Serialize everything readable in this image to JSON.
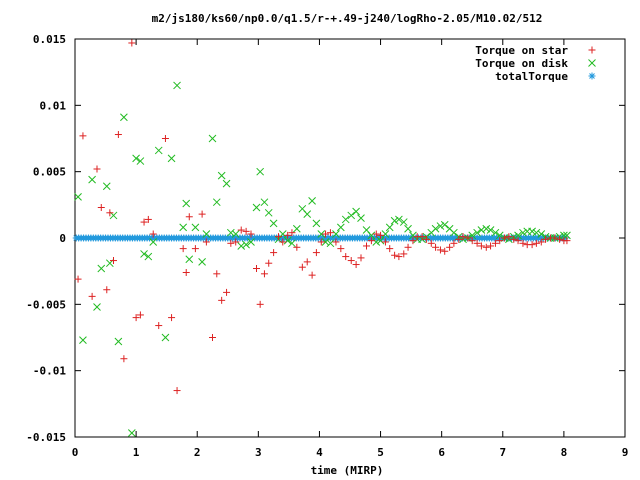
{
  "chart_data": {
    "type": "scatter",
    "title": "m2/js180/ks60/np0.0/q1.5/r-+.49-j240/logRho-2.05/M10.02/512",
    "xlabel": "time (MIRP)",
    "ylabel": "",
    "xlim": [
      0,
      9
    ],
    "ylim": [
      -0.015,
      0.015
    ],
    "x_ticks": [
      "0",
      "1",
      "2",
      "3",
      "4",
      "5",
      "6",
      "7",
      "8",
      "9"
    ],
    "y_ticks": [
      "0.015",
      "0.01",
      "0.005",
      "0",
      "-0.005",
      "-0.01",
      "-0.015"
    ],
    "grid": false,
    "legend_position": "top-right",
    "colors": {
      "star": "#dd2222",
      "disk": "#22bb22",
      "total": "#2299dd"
    },
    "series": [
      {
        "name": "Torque on star",
        "marker": "plus",
        "points": [
          [
            0.05,
            -0.0031
          ],
          [
            0.13,
            0.0077
          ],
          [
            0.28,
            -0.0044
          ],
          [
            0.36,
            0.0052
          ],
          [
            0.43,
            0.0023
          ],
          [
            0.52,
            -0.0039
          ],
          [
            0.57,
            0.0019
          ],
          [
            0.63,
            -0.0017
          ],
          [
            0.71,
            0.0078
          ],
          [
            0.8,
            -0.0091
          ],
          [
            0.93,
            0.0147
          ],
          [
            1.0,
            -0.006
          ],
          [
            1.07,
            -0.0058
          ],
          [
            1.13,
            0.0012
          ],
          [
            1.2,
            0.0014
          ],
          [
            1.28,
            0.0003
          ],
          [
            1.37,
            -0.0066
          ],
          [
            1.48,
            0.0075
          ],
          [
            1.58,
            -0.006
          ],
          [
            1.67,
            -0.0115
          ],
          [
            1.77,
            -0.0008
          ],
          [
            1.82,
            -0.0026
          ],
          [
            1.87,
            0.0016
          ],
          [
            1.97,
            -0.0008
          ],
          [
            2.08,
            0.0018
          ],
          [
            2.15,
            -0.0003
          ],
          [
            2.25,
            -0.0075
          ],
          [
            2.32,
            -0.0027
          ],
          [
            2.4,
            -0.0047
          ],
          [
            2.48,
            -0.0041
          ],
          [
            2.55,
            -0.0004
          ],
          [
            2.63,
            -0.0003
          ],
          [
            2.72,
            0.0006
          ],
          [
            2.8,
            0.0005
          ],
          [
            2.88,
            0.0003
          ],
          [
            2.97,
            -0.0023
          ],
          [
            3.03,
            -0.005
          ],
          [
            3.1,
            -0.0027
          ],
          [
            3.17,
            -0.0019
          ],
          [
            3.25,
            -0.0011
          ],
          [
            3.33,
            0.0001
          ],
          [
            3.4,
            -0.0003
          ],
          [
            3.48,
            0.0002
          ],
          [
            3.55,
            0.0004
          ],
          [
            3.63,
            -0.0007
          ],
          [
            3.72,
            -0.0022
          ],
          [
            3.8,
            -0.0018
          ],
          [
            3.88,
            -0.0028
          ],
          [
            3.95,
            -0.0011
          ],
          [
            4.03,
            -0.0003
          ],
          [
            4.1,
            0.0003
          ],
          [
            4.18,
            0.0004
          ],
          [
            4.27,
            -0.0003
          ],
          [
            4.35,
            -0.0008
          ],
          [
            4.43,
            -0.0014
          ],
          [
            4.52,
            -0.0017
          ],
          [
            4.6,
            -0.002
          ],
          [
            4.68,
            -0.0015
          ],
          [
            4.77,
            -0.0006
          ],
          [
            4.85,
            -0.0002
          ],
          [
            4.93,
            0.0003
          ],
          [
            5.0,
            0.0002
          ],
          [
            5.08,
            -0.0003
          ],
          [
            5.15,
            -0.0008
          ],
          [
            5.23,
            -0.0013
          ],
          [
            5.3,
            -0.0014
          ],
          [
            5.38,
            -0.0012
          ],
          [
            5.45,
            -0.0007
          ],
          [
            5.53,
            -0.0002
          ],
          [
            5.6,
            0.0001
          ],
          [
            5.68,
            0.0001
          ],
          [
            5.75,
            -0.0001
          ],
          [
            5.83,
            -0.0004
          ],
          [
            5.9,
            -0.0007
          ],
          [
            5.98,
            -0.0009
          ],
          [
            6.05,
            -0.001
          ],
          [
            6.13,
            -0.0007
          ],
          [
            6.2,
            -0.0004
          ],
          [
            6.28,
            -0.0001
          ],
          [
            6.35,
            0.0001
          ],
          [
            6.43,
            0.0
          ],
          [
            6.5,
            -0.0002
          ],
          [
            6.58,
            -0.0004
          ],
          [
            6.65,
            -0.0006
          ],
          [
            6.73,
            -0.0007
          ],
          [
            6.8,
            -0.0006
          ],
          [
            6.88,
            -0.0004
          ],
          [
            6.95,
            -0.0002
          ],
          [
            7.03,
            0.0
          ],
          [
            7.1,
            0.0001
          ],
          [
            7.18,
            -0.0001
          ],
          [
            7.25,
            -0.0002
          ],
          [
            7.33,
            -0.0004
          ],
          [
            7.4,
            -0.0005
          ],
          [
            7.48,
            -0.0005
          ],
          [
            7.55,
            -0.0004
          ],
          [
            7.63,
            -0.0003
          ],
          [
            7.7,
            -0.0001
          ],
          [
            7.78,
            0.0
          ],
          [
            7.85,
            0.0
          ],
          [
            7.93,
            -0.0001
          ],
          [
            8.0,
            -0.0002
          ],
          [
            8.05,
            -0.0002
          ]
        ]
      },
      {
        "name": "Torque on disk",
        "marker": "cross",
        "points": [
          [
            0.05,
            0.0031
          ],
          [
            0.13,
            -0.0077
          ],
          [
            0.28,
            0.0044
          ],
          [
            0.36,
            -0.0052
          ],
          [
            0.43,
            -0.0023
          ],
          [
            0.52,
            0.0039
          ],
          [
            0.57,
            -0.0019
          ],
          [
            0.63,
            0.0017
          ],
          [
            0.71,
            -0.0078
          ],
          [
            0.8,
            0.0091
          ],
          [
            0.93,
            -0.0147
          ],
          [
            1.0,
            0.006
          ],
          [
            1.07,
            0.0058
          ],
          [
            1.13,
            -0.0012
          ],
          [
            1.2,
            -0.0014
          ],
          [
            1.28,
            -0.0003
          ],
          [
            1.37,
            0.0066
          ],
          [
            1.48,
            -0.0075
          ],
          [
            1.58,
            0.006
          ],
          [
            1.67,
            0.0115
          ],
          [
            1.77,
            0.0008
          ],
          [
            1.82,
            0.0026
          ],
          [
            1.87,
            -0.0016
          ],
          [
            1.97,
            0.0008
          ],
          [
            2.08,
            -0.0018
          ],
          [
            2.15,
            0.0003
          ],
          [
            2.25,
            0.0075
          ],
          [
            2.32,
            0.0027
          ],
          [
            2.4,
            0.0047
          ],
          [
            2.48,
            0.0041
          ],
          [
            2.55,
            0.0004
          ],
          [
            2.63,
            0.0003
          ],
          [
            2.72,
            -0.0006
          ],
          [
            2.8,
            -0.0005
          ],
          [
            2.88,
            -0.0003
          ],
          [
            2.97,
            0.0023
          ],
          [
            3.03,
            0.005
          ],
          [
            3.1,
            0.0027
          ],
          [
            3.17,
            0.0019
          ],
          [
            3.25,
            0.0011
          ],
          [
            3.33,
            -0.0001
          ],
          [
            3.4,
            0.0003
          ],
          [
            3.48,
            -0.0002
          ],
          [
            3.55,
            -0.0004
          ],
          [
            3.63,
            0.0007
          ],
          [
            3.72,
            0.0022
          ],
          [
            3.8,
            0.0018
          ],
          [
            3.88,
            0.0028
          ],
          [
            3.95,
            0.0011
          ],
          [
            4.03,
            0.0003
          ],
          [
            4.1,
            -0.0003
          ],
          [
            4.18,
            -0.0004
          ],
          [
            4.27,
            0.0003
          ],
          [
            4.35,
            0.0008
          ],
          [
            4.43,
            0.0014
          ],
          [
            4.52,
            0.0017
          ],
          [
            4.6,
            0.002
          ],
          [
            4.68,
            0.0015
          ],
          [
            4.77,
            0.0006
          ],
          [
            4.85,
            0.0002
          ],
          [
            4.93,
            -0.0003
          ],
          [
            5.0,
            -0.0002
          ],
          [
            5.08,
            0.0003
          ],
          [
            5.15,
            0.0008
          ],
          [
            5.23,
            0.0013
          ],
          [
            5.3,
            0.0014
          ],
          [
            5.38,
            0.0012
          ],
          [
            5.45,
            0.0007
          ],
          [
            5.53,
            0.0002
          ],
          [
            5.6,
            -0.0001
          ],
          [
            5.68,
            -0.0001
          ],
          [
            5.75,
            0.0001
          ],
          [
            5.83,
            0.0004
          ],
          [
            5.9,
            0.0007
          ],
          [
            5.98,
            0.0009
          ],
          [
            6.05,
            0.001
          ],
          [
            6.13,
            0.0007
          ],
          [
            6.2,
            0.0004
          ],
          [
            6.28,
            0.0001
          ],
          [
            6.35,
            -0.0001
          ],
          [
            6.43,
            0.0
          ],
          [
            6.5,
            0.0002
          ],
          [
            6.58,
            0.0004
          ],
          [
            6.65,
            0.0006
          ],
          [
            6.73,
            0.0007
          ],
          [
            6.8,
            0.0006
          ],
          [
            6.88,
            0.0004
          ],
          [
            6.95,
            0.0002
          ],
          [
            7.03,
            0.0
          ],
          [
            7.1,
            -0.0001
          ],
          [
            7.18,
            0.0001
          ],
          [
            7.25,
            0.0002
          ],
          [
            7.33,
            0.0004
          ],
          [
            7.4,
            0.0005
          ],
          [
            7.48,
            0.0005
          ],
          [
            7.55,
            0.0004
          ],
          [
            7.63,
            0.0003
          ],
          [
            7.7,
            0.0001
          ],
          [
            7.78,
            0.0
          ],
          [
            7.85,
            0.0
          ],
          [
            7.93,
            0.0001
          ],
          [
            8.0,
            0.0002
          ],
          [
            8.05,
            0.0002
          ]
        ]
      },
      {
        "name": "totalTorque",
        "marker": "star",
        "x_start": 0.02,
        "x_end": 8.05,
        "x_step": 0.04,
        "values_note_constant": 0.0
      }
    ]
  }
}
